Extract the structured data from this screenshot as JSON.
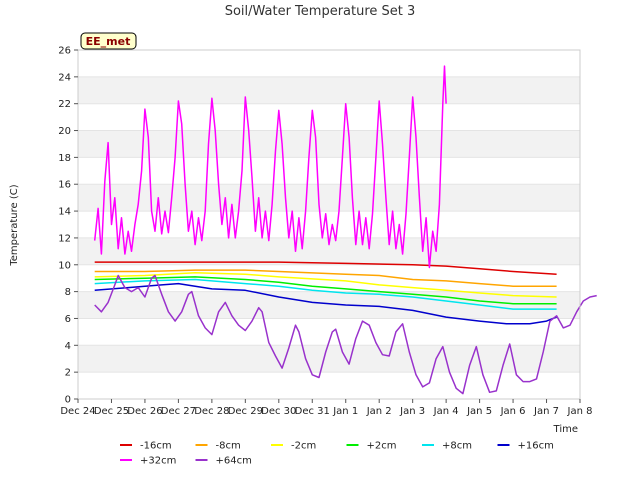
{
  "chart_data": {
    "type": "line",
    "title": "Soil/Water Temperature Set 3",
    "xlabel": "Time",
    "ylabel": "Temperature (C)",
    "badge": "EE_met",
    "ylim": [
      0,
      26
    ],
    "yticks": [
      0,
      2,
      4,
      6,
      8,
      10,
      12,
      14,
      16,
      18,
      20,
      22,
      24,
      26
    ],
    "xlim": [
      0,
      15
    ],
    "x_ticks": [
      {
        "x": 0,
        "label": "Dec 24"
      },
      {
        "x": 1,
        "label": "Dec 25"
      },
      {
        "x": 2,
        "label": "Dec 26"
      },
      {
        "x": 3,
        "label": "Dec 27"
      },
      {
        "x": 4,
        "label": "Dec 28"
      },
      {
        "x": 5,
        "label": "Dec 29"
      },
      {
        "x": 6,
        "label": "Dec 30"
      },
      {
        "x": 7,
        "label": "Dec 31"
      },
      {
        "x": 8,
        "label": "Jan 1"
      },
      {
        "x": 9,
        "label": "Jan 2"
      },
      {
        "x": 10,
        "label": "Jan 3"
      },
      {
        "x": 11,
        "label": "Jan 4"
      },
      {
        "x": 12,
        "label": "Jan 5"
      },
      {
        "x": 13,
        "label": "Jan 6"
      },
      {
        "x": 14,
        "label": "Jan 7"
      },
      {
        "x": 15,
        "label": "Jan 8"
      }
    ],
    "grid": "horizontal bands",
    "legend_position": "bottom",
    "series": [
      {
        "name": "-16cm",
        "color": "#dd0000",
        "points": [
          [
            0.5,
            10.2
          ],
          [
            2,
            10.2
          ],
          [
            4,
            10.2
          ],
          [
            6,
            10.2
          ],
          [
            8,
            10.1
          ],
          [
            10,
            10.0
          ],
          [
            11,
            9.9
          ],
          [
            12,
            9.7
          ],
          [
            13,
            9.5
          ],
          [
            14.3,
            9.3
          ]
        ]
      },
      {
        "name": "-8cm",
        "color": "#ffa500",
        "points": [
          [
            0.5,
            9.5
          ],
          [
            2,
            9.5
          ],
          [
            3.5,
            9.6
          ],
          [
            5,
            9.6
          ],
          [
            6,
            9.5
          ],
          [
            8,
            9.3
          ],
          [
            9,
            9.2
          ],
          [
            10,
            8.9
          ],
          [
            11,
            8.8
          ],
          [
            12,
            8.6
          ],
          [
            13,
            8.4
          ],
          [
            14.3,
            8.4
          ]
        ]
      },
      {
        "name": "-2cm",
        "color": "#ffff00",
        "points": [
          [
            0.5,
            9.1
          ],
          [
            2,
            9.2
          ],
          [
            3.5,
            9.4
          ],
          [
            5,
            9.3
          ],
          [
            6,
            9.1
          ],
          [
            8,
            8.8
          ],
          [
            9,
            8.5
          ],
          [
            10,
            8.3
          ],
          [
            11,
            8.1
          ],
          [
            12,
            7.9
          ],
          [
            13,
            7.7
          ],
          [
            14.3,
            7.6
          ]
        ]
      },
      {
        "name": "+2cm",
        "color": "#00ee00",
        "points": [
          [
            0.5,
            8.9
          ],
          [
            2,
            9.0
          ],
          [
            3.5,
            9.1
          ],
          [
            5,
            8.9
          ],
          [
            6,
            8.7
          ],
          [
            7,
            8.4
          ],
          [
            8,
            8.2
          ],
          [
            9,
            8.0
          ],
          [
            10,
            7.8
          ],
          [
            11,
            7.6
          ],
          [
            12,
            7.3
          ],
          [
            13,
            7.1
          ],
          [
            14.3,
            7.1
          ]
        ]
      },
      {
        "name": "+8cm",
        "color": "#00e5ee",
        "points": [
          [
            0.5,
            8.6
          ],
          [
            2,
            8.8
          ],
          [
            3.5,
            8.9
          ],
          [
            5,
            8.6
          ],
          [
            6,
            8.4
          ],
          [
            7,
            8.1
          ],
          [
            8,
            7.9
          ],
          [
            9,
            7.8
          ],
          [
            10,
            7.6
          ],
          [
            11,
            7.3
          ],
          [
            12,
            7.0
          ],
          [
            13,
            6.7
          ],
          [
            14.3,
            6.7
          ]
        ]
      },
      {
        "name": "+16cm",
        "color": "#0000cc",
        "points": [
          [
            0.5,
            8.1
          ],
          [
            1.5,
            8.3
          ],
          [
            2.5,
            8.5
          ],
          [
            3,
            8.6
          ],
          [
            4,
            8.2
          ],
          [
            5,
            8.1
          ],
          [
            6,
            7.6
          ],
          [
            7,
            7.2
          ],
          [
            8,
            7.0
          ],
          [
            9,
            6.9
          ],
          [
            10,
            6.6
          ],
          [
            11,
            6.1
          ],
          [
            12,
            5.8
          ],
          [
            12.8,
            5.6
          ],
          [
            13.5,
            5.6
          ],
          [
            14,
            5.8
          ],
          [
            14.3,
            6.1
          ]
        ]
      },
      {
        "name": "+32cm",
        "color": "#ff00ff",
        "points": [
          [
            0.5,
            11.8
          ],
          [
            0.6,
            14.2
          ],
          [
            0.7,
            10.8
          ],
          [
            0.8,
            16.2
          ],
          [
            0.9,
            19.1
          ],
          [
            1.0,
            13.0
          ],
          [
            1.1,
            15.0
          ],
          [
            1.2,
            11.2
          ],
          [
            1.3,
            13.5
          ],
          [
            1.4,
            10.8
          ],
          [
            1.5,
            12.5
          ],
          [
            1.6,
            11.0
          ],
          [
            1.7,
            13.0
          ],
          [
            1.8,
            14.5
          ],
          [
            1.9,
            17.0
          ],
          [
            2.0,
            21.6
          ],
          [
            2.1,
            19.5
          ],
          [
            2.2,
            14.0
          ],
          [
            2.3,
            12.5
          ],
          [
            2.4,
            15.0
          ],
          [
            2.5,
            12.3
          ],
          [
            2.6,
            14.0
          ],
          [
            2.7,
            12.4
          ],
          [
            2.8,
            15.0
          ],
          [
            2.9,
            18.0
          ],
          [
            3.0,
            22.2
          ],
          [
            3.1,
            20.5
          ],
          [
            3.2,
            16.0
          ],
          [
            3.3,
            12.5
          ],
          [
            3.4,
            14.0
          ],
          [
            3.5,
            11.5
          ],
          [
            3.6,
            13.5
          ],
          [
            3.7,
            11.8
          ],
          [
            3.8,
            14.0
          ],
          [
            3.9,
            19.0
          ],
          [
            4.0,
            22.4
          ],
          [
            4.1,
            20.0
          ],
          [
            4.2,
            16.0
          ],
          [
            4.3,
            13.0
          ],
          [
            4.4,
            15.0
          ],
          [
            4.5,
            12.0
          ],
          [
            4.6,
            14.5
          ],
          [
            4.7,
            12.0
          ],
          [
            4.8,
            14.0
          ],
          [
            4.9,
            17.0
          ],
          [
            5.0,
            22.5
          ],
          [
            5.1,
            20.0
          ],
          [
            5.2,
            16.5
          ],
          [
            5.3,
            12.5
          ],
          [
            5.4,
            15.0
          ],
          [
            5.5,
            12.0
          ],
          [
            5.6,
            14.0
          ],
          [
            5.7,
            11.8
          ],
          [
            5.8,
            14.5
          ],
          [
            5.9,
            18.5
          ],
          [
            6.0,
            21.5
          ],
          [
            6.1,
            19.0
          ],
          [
            6.2,
            15.0
          ],
          [
            6.3,
            12.0
          ],
          [
            6.4,
            14.0
          ],
          [
            6.5,
            11.0
          ],
          [
            6.6,
            13.5
          ],
          [
            6.7,
            11.2
          ],
          [
            6.8,
            14.0
          ],
          [
            6.9,
            18.0
          ],
          [
            7.0,
            21.5
          ],
          [
            7.1,
            19.5
          ],
          [
            7.2,
            14.5
          ],
          [
            7.3,
            12.0
          ],
          [
            7.4,
            13.8
          ],
          [
            7.5,
            11.5
          ],
          [
            7.6,
            13.0
          ],
          [
            7.7,
            11.8
          ],
          [
            7.8,
            14.0
          ],
          [
            7.9,
            18.0
          ],
          [
            8.0,
            22.0
          ],
          [
            8.1,
            19.5
          ],
          [
            8.2,
            15.0
          ],
          [
            8.3,
            11.5
          ],
          [
            8.4,
            14.0
          ],
          [
            8.5,
            11.5
          ],
          [
            8.6,
            13.5
          ],
          [
            8.7,
            11.2
          ],
          [
            8.8,
            13.8
          ],
          [
            8.9,
            18.0
          ],
          [
            9.0,
            22.2
          ],
          [
            9.1,
            19.0
          ],
          [
            9.2,
            15.0
          ],
          [
            9.3,
            11.5
          ],
          [
            9.4,
            14.0
          ],
          [
            9.5,
            11.2
          ],
          [
            9.6,
            13.0
          ],
          [
            9.7,
            10.8
          ],
          [
            9.8,
            13.8
          ],
          [
            9.9,
            18.0
          ],
          [
            10.0,
            22.5
          ],
          [
            10.1,
            19.5
          ],
          [
            10.2,
            15.0
          ],
          [
            10.3,
            11.0
          ],
          [
            10.4,
            13.5
          ],
          [
            10.5,
            9.8
          ],
          [
            10.6,
            12.5
          ],
          [
            10.7,
            11.0
          ],
          [
            10.8,
            14.5
          ],
          [
            10.9,
            22.0
          ],
          [
            10.95,
            24.8
          ],
          [
            11.0,
            22.0
          ]
        ]
      },
      {
        "name": "+64cm",
        "color": "#9932cc",
        "points": [
          [
            0.5,
            7.0
          ],
          [
            0.7,
            6.5
          ],
          [
            0.9,
            7.2
          ],
          [
            1.1,
            8.5
          ],
          [
            1.2,
            9.2
          ],
          [
            1.4,
            8.3
          ],
          [
            1.6,
            8.0
          ],
          [
            1.8,
            8.3
          ],
          [
            2.0,
            7.6
          ],
          [
            2.2,
            9.0
          ],
          [
            2.3,
            9.2
          ],
          [
            2.5,
            7.8
          ],
          [
            2.7,
            6.5
          ],
          [
            2.9,
            5.8
          ],
          [
            3.1,
            6.5
          ],
          [
            3.3,
            7.8
          ],
          [
            3.4,
            8.0
          ],
          [
            3.6,
            6.2
          ],
          [
            3.8,
            5.3
          ],
          [
            4.0,
            4.8
          ],
          [
            4.2,
            6.5
          ],
          [
            4.4,
            7.2
          ],
          [
            4.6,
            6.2
          ],
          [
            4.8,
            5.5
          ],
          [
            5.0,
            5.1
          ],
          [
            5.2,
            5.8
          ],
          [
            5.4,
            6.8
          ],
          [
            5.5,
            6.5
          ],
          [
            5.7,
            4.2
          ],
          [
            5.9,
            3.2
          ],
          [
            6.1,
            2.3
          ],
          [
            6.3,
            3.8
          ],
          [
            6.5,
            5.5
          ],
          [
            6.6,
            5.0
          ],
          [
            6.8,
            3.0
          ],
          [
            7.0,
            1.8
          ],
          [
            7.2,
            1.6
          ],
          [
            7.4,
            3.5
          ],
          [
            7.6,
            5.0
          ],
          [
            7.7,
            5.2
          ],
          [
            7.9,
            3.5
          ],
          [
            8.1,
            2.6
          ],
          [
            8.3,
            4.5
          ],
          [
            8.5,
            5.8
          ],
          [
            8.7,
            5.5
          ],
          [
            8.9,
            4.2
          ],
          [
            9.1,
            3.3
          ],
          [
            9.3,
            3.2
          ],
          [
            9.5,
            5.0
          ],
          [
            9.7,
            5.6
          ],
          [
            9.9,
            3.5
          ],
          [
            10.1,
            1.8
          ],
          [
            10.3,
            0.9
          ],
          [
            10.5,
            1.2
          ],
          [
            10.7,
            3.0
          ],
          [
            10.9,
            3.9
          ],
          [
            11.1,
            2.0
          ],
          [
            11.3,
            0.8
          ],
          [
            11.5,
            0.4
          ],
          [
            11.7,
            2.5
          ],
          [
            11.9,
            3.9
          ],
          [
            12.1,
            1.8
          ],
          [
            12.3,
            0.5
          ],
          [
            12.5,
            0.6
          ],
          [
            12.7,
            2.5
          ],
          [
            12.9,
            4.1
          ],
          [
            13.1,
            1.8
          ],
          [
            13.3,
            1.3
          ],
          [
            13.5,
            1.3
          ],
          [
            13.7,
            1.5
          ],
          [
            13.9,
            3.5
          ],
          [
            14.1,
            5.8
          ],
          [
            14.3,
            6.2
          ],
          [
            14.5,
            5.3
          ],
          [
            14.7,
            5.5
          ],
          [
            14.9,
            6.5
          ],
          [
            15.1,
            7.3
          ],
          [
            15.3,
            7.6
          ],
          [
            15.5,
            7.7
          ]
        ]
      }
    ]
  }
}
